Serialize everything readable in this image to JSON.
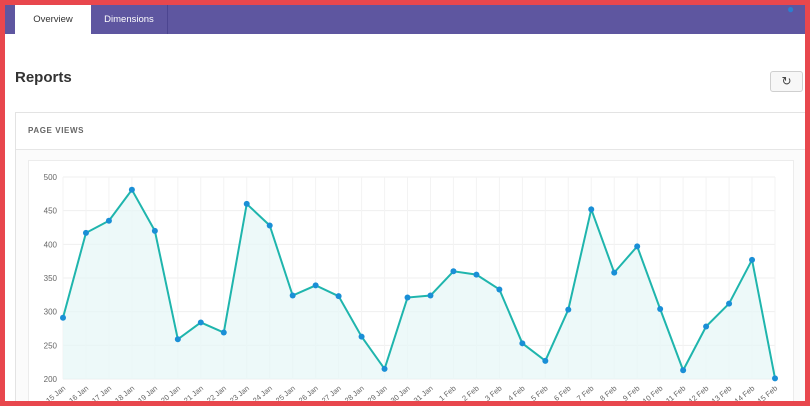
{
  "tabs": [
    {
      "label": "Overview",
      "active": true
    },
    {
      "label": "Dimensions",
      "active": false
    }
  ],
  "page": {
    "title": "Reports"
  },
  "toolbar": {
    "refresh_icon": "refresh-icon"
  },
  "panel": {
    "title": "PAGE VIEWS"
  },
  "colors": {
    "accent": "#5e56a0",
    "line": "#1fb5ad",
    "fill": "#e6f7f6",
    "point": "#1a8fd6",
    "border": "#e8474d"
  },
  "chart_data": {
    "type": "area",
    "x": [
      "15 Jan",
      "16 Jan",
      "17 Jan",
      "18 Jan",
      "19 Jan",
      "20 Jan",
      "21 Jan",
      "22 Jan",
      "23 Jan",
      "24 Jan",
      "25 Jan",
      "26 Jan",
      "27 Jan",
      "28 Jan",
      "29 Jan",
      "30 Jan",
      "31 Jan",
      "1 Feb",
      "2 Feb",
      "3 Feb",
      "4 Feb",
      "5 Feb",
      "6 Feb",
      "7 Feb",
      "8 Feb",
      "9 Feb",
      "10 Feb",
      "11 Feb",
      "12 Feb",
      "13 Feb",
      "14 Feb",
      "15 Feb"
    ],
    "series": [
      {
        "values": [
          291,
          417,
          435,
          481,
          420,
          259,
          284,
          269,
          460,
          428,
          324,
          339,
          323,
          263,
          215,
          321,
          324,
          360,
          355,
          333,
          253,
          227,
          303,
          452,
          358,
          397,
          304,
          213,
          278,
          312,
          377,
          201
        ]
      }
    ],
    "yticks": [
      500,
      450,
      400,
      350,
      300,
      250,
      200
    ],
    "ylim": [
      200,
      500
    ],
    "grid": true
  }
}
